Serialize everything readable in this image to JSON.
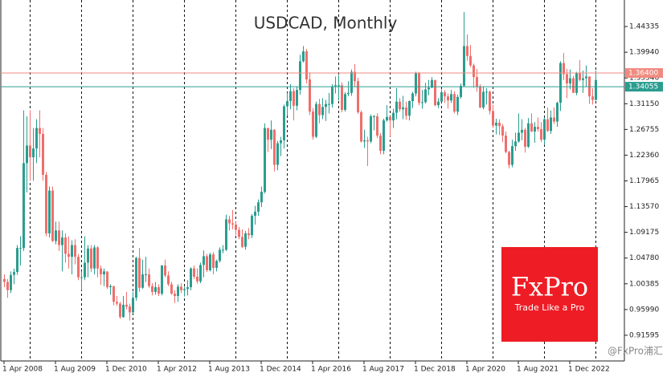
{
  "chart_data": {
    "type": "candlestick",
    "title": "USDCAD, Monthly",
    "up_color": "#2a9d8f",
    "down_color": "#ef6f6c",
    "ylim": [
      0.872,
      1.48868
    ],
    "yticks": [
      1.44335,
      {
        "value": 1.3994,
        "label": "1.39940"
      },
      1.35546,
      {
        "value": 1.3115,
        "label": "1.31150"
      },
      1.26755,
      {
        "value": 1.2236,
        "label": "1.22360"
      },
      1.17965,
      {
        "value": 1.1357,
        "label": "1.13570"
      },
      1.09175,
      {
        "value": 1.0478,
        "label": "1.04780"
      },
      1.00385,
      {
        "value": 0.9599,
        "label": "0.95990"
      },
      0.91595
    ],
    "hlines": [
      {
        "value": 1.364,
        "label": "1.36400",
        "color": "#f08a80"
      },
      {
        "value": 1.34055,
        "label": "1.34055",
        "color": "#2a9d8f"
      }
    ],
    "logo": {
      "name": "FxPro",
      "slogan": "Trade Like a Pro",
      "color": "#ee1c25"
    },
    "watermark": "@FxPro浦汇",
    "categories": [
      "1 Apr 2008",
      null,
      null,
      null,
      null,
      null,
      null,
      null,
      null,
      null,
      null,
      null,
      null,
      null,
      null,
      null,
      "1 Aug 2009",
      null,
      null,
      null,
      null,
      null,
      null,
      null,
      null,
      null,
      null,
      null,
      null,
      null,
      null,
      null,
      "1 Dec 2010",
      null,
      null,
      null,
      null,
      null,
      null,
      null,
      null,
      null,
      null,
      null,
      null,
      null,
      null,
      null,
      "1 Apr 2012",
      null,
      null,
      null,
      null,
      null,
      null,
      null,
      null,
      null,
      null,
      null,
      null,
      null,
      null,
      null,
      "1 Aug 2013",
      null,
      null,
      null,
      null,
      null,
      null,
      null,
      null,
      null,
      null,
      null,
      null,
      null,
      null,
      null,
      "1 Dec 2014",
      null,
      null,
      null,
      null,
      null,
      null,
      null,
      null,
      null,
      null,
      null,
      null,
      null,
      null,
      null,
      "1 Apr 2016",
      null,
      null,
      null,
      null,
      null,
      null,
      null,
      null,
      null,
      null,
      null,
      null,
      null,
      null,
      null,
      "1 Aug 2017",
      null,
      null,
      null,
      null,
      null,
      null,
      null,
      null,
      null,
      null,
      null,
      null,
      null,
      null,
      null,
      "1 Dec 2018",
      null,
      null,
      null,
      null,
      null,
      null,
      null,
      null,
      null,
      null,
      null,
      null,
      null,
      null,
      null,
      "1 Apr 2020",
      null,
      null,
      null,
      null,
      null,
      null,
      null,
      null,
      null,
      null,
      null,
      null,
      null,
      null,
      null,
      "1 Aug 2021",
      null,
      null,
      null,
      null,
      null,
      null,
      null,
      null,
      null,
      null,
      null,
      null,
      null,
      null,
      null,
      "1 Dec 2022",
      null,
      null,
      null,
      null,
      null,
      null,
      null,
      null
    ],
    "ohlc": [
      [
        1.012,
        1.02,
        0.998,
        1.007
      ],
      [
        1.007,
        1.012,
        0.98,
        0.993
      ],
      [
        0.993,
        1.025,
        0.988,
        1.019
      ],
      [
        1.019,
        1.03,
        1.003,
        1.024
      ],
      [
        1.024,
        1.07,
        1.019,
        1.065
      ],
      [
        1.065,
        1.085,
        1.035,
        1.065
      ],
      [
        1.065,
        1.3,
        1.06,
        1.21
      ],
      [
        1.21,
        1.29,
        1.16,
        1.24
      ],
      [
        1.24,
        1.3,
        1.18,
        1.22
      ],
      [
        1.22,
        1.27,
        1.18,
        1.235
      ],
      [
        1.235,
        1.285,
        1.21,
        1.27
      ],
      [
        1.27,
        1.3,
        1.22,
        1.26
      ],
      [
        1.26,
        1.27,
        1.18,
        1.19
      ],
      [
        1.19,
        1.195,
        1.085,
        1.09
      ],
      [
        1.09,
        1.17,
        1.083,
        1.163
      ],
      [
        1.163,
        1.17,
        1.075,
        1.077
      ],
      [
        1.077,
        1.11,
        1.071,
        1.095
      ],
      [
        1.095,
        1.11,
        1.06,
        1.07
      ],
      [
        1.07,
        1.095,
        1.025,
        1.083
      ],
      [
        1.083,
        1.09,
        1.04,
        1.055
      ],
      [
        1.055,
        1.085,
        1.03,
        1.05
      ],
      [
        1.05,
        1.078,
        1.02,
        1.07
      ],
      [
        1.07,
        1.08,
        1.037,
        1.05
      ],
      [
        1.05,
        1.055,
        1.01,
        1.015
      ],
      [
        1.015,
        1.025,
        0.993,
        1.015
      ],
      [
        1.015,
        1.085,
        1.01,
        1.04
      ],
      [
        1.04,
        1.07,
        1.015,
        1.064
      ],
      [
        1.064,
        1.07,
        1.024,
        1.03
      ],
      [
        1.03,
        1.07,
        1.02,
        1.066
      ],
      [
        1.066,
        1.068,
        1.015,
        1.03
      ],
      [
        1.03,
        1.035,
        1.002,
        1.02
      ],
      [
        1.02,
        1.03,
        1.0,
        1.025
      ],
      [
        1.025,
        1.025,
        0.995,
        0.998
      ],
      [
        0.998,
        1.003,
        0.985,
        1.0
      ],
      [
        1.0,
        1.0,
        0.967,
        0.973
      ],
      [
        0.973,
        0.983,
        0.966,
        0.97
      ],
      [
        0.97,
        0.973,
        0.944,
        0.947
      ],
      [
        0.947,
        0.983,
        0.946,
        0.968
      ],
      [
        0.968,
        0.99,
        0.96,
        0.965
      ],
      [
        0.965,
        0.97,
        0.941,
        0.955
      ],
      [
        0.955,
        0.99,
        0.953,
        0.98
      ],
      [
        0.98,
        1.05,
        0.975,
        1.048
      ],
      [
        1.048,
        1.065,
        0.99,
        0.997
      ],
      [
        0.997,
        1.045,
        0.995,
        1.02
      ],
      [
        1.02,
        1.05,
        1.007,
        1.02
      ],
      [
        1.02,
        1.03,
        0.997,
        1.0
      ],
      [
        1.0,
        1.005,
        0.984,
        0.99
      ],
      [
        0.99,
        1.007,
        0.985,
        0.998
      ],
      [
        0.998,
        1.003,
        0.983,
        0.987
      ],
      [
        0.987,
        1.036,
        0.984,
        1.035
      ],
      [
        1.035,
        1.045,
        1.015,
        1.018
      ],
      [
        1.018,
        1.025,
        1.0,
        1.003
      ],
      [
        1.003,
        1.007,
        0.985,
        0.987
      ],
      [
        0.987,
        0.993,
        0.971,
        0.983
      ],
      [
        0.983,
        1.003,
        0.973,
        0.999
      ],
      [
        0.999,
        1.005,
        0.988,
        0.993
      ],
      [
        0.993,
        0.999,
        0.982,
        0.995
      ],
      [
        0.995,
        1.01,
        0.984,
        0.998
      ],
      [
        0.998,
        1.032,
        0.993,
        1.03
      ],
      [
        1.03,
        1.035,
        1.012,
        1.016
      ],
      [
        1.016,
        1.03,
        1.004,
        1.008
      ],
      [
        1.008,
        1.04,
        1.005,
        1.036
      ],
      [
        1.036,
        1.061,
        1.015,
        1.051
      ],
      [
        1.051,
        1.055,
        1.024,
        1.027
      ],
      [
        1.027,
        1.057,
        1.025,
        1.054
      ],
      [
        1.054,
        1.058,
        1.02,
        1.031
      ],
      [
        1.031,
        1.045,
        1.025,
        1.043
      ],
      [
        1.043,
        1.066,
        1.04,
        1.062
      ],
      [
        1.062,
        1.07,
        1.056,
        1.062
      ],
      [
        1.062,
        1.122,
        1.06,
        1.114
      ],
      [
        1.114,
        1.12,
        1.095,
        1.107
      ],
      [
        1.107,
        1.13,
        1.097,
        1.105
      ],
      [
        1.105,
        1.11,
        1.087,
        1.096
      ],
      [
        1.096,
        1.101,
        1.08,
        1.084
      ],
      [
        1.084,
        1.097,
        1.065,
        1.067
      ],
      [
        1.067,
        1.094,
        1.062,
        1.09
      ],
      [
        1.09,
        1.099,
        1.08,
        1.087
      ],
      [
        1.087,
        1.123,
        1.082,
        1.12
      ],
      [
        1.12,
        1.137,
        1.105,
        1.127
      ],
      [
        1.127,
        1.148,
        1.12,
        1.143
      ],
      [
        1.143,
        1.17,
        1.135,
        1.161
      ],
      [
        1.161,
        1.278,
        1.158,
        1.27
      ],
      [
        1.27,
        1.27,
        1.229,
        1.25
      ],
      [
        1.25,
        1.283,
        1.234,
        1.267
      ],
      [
        1.267,
        1.268,
        1.196,
        1.207
      ],
      [
        1.207,
        1.248,
        1.198,
        1.244
      ],
      [
        1.244,
        1.255,
        1.222,
        1.249
      ],
      [
        1.249,
        1.31,
        1.235,
        1.307
      ],
      [
        1.307,
        1.33,
        1.291,
        1.316
      ],
      [
        1.316,
        1.345,
        1.302,
        1.333
      ],
      [
        1.333,
        1.338,
        1.283,
        1.308
      ],
      [
        1.308,
        1.34,
        1.3,
        1.335
      ],
      [
        1.335,
        1.395,
        1.327,
        1.384
      ],
      [
        1.384,
        1.41,
        1.382,
        1.401
      ],
      [
        1.401,
        1.405,
        1.346,
        1.353
      ],
      [
        1.353,
        1.365,
        1.292,
        1.298
      ],
      [
        1.298,
        1.304,
        1.25,
        1.255
      ],
      [
        1.255,
        1.315,
        1.253,
        1.311
      ],
      [
        1.311,
        1.32,
        1.278,
        1.292
      ],
      [
        1.292,
        1.321,
        1.285,
        1.306
      ],
      [
        1.306,
        1.318,
        1.282,
        1.311
      ],
      [
        1.311,
        1.33,
        1.295,
        1.311
      ],
      [
        1.311,
        1.345,
        1.305,
        1.341
      ],
      [
        1.341,
        1.358,
        1.329,
        1.343
      ],
      [
        1.343,
        1.36,
        1.317,
        1.343
      ],
      [
        1.343,
        1.348,
        1.297,
        1.301
      ],
      [
        1.301,
        1.331,
        1.298,
        1.328
      ],
      [
        1.328,
        1.35,
        1.324,
        1.33
      ],
      [
        1.33,
        1.37,
        1.325,
        1.366
      ],
      [
        1.366,
        1.379,
        1.34,
        1.35
      ],
      [
        1.35,
        1.356,
        1.294,
        1.297
      ],
      [
        1.297,
        1.3,
        1.245,
        1.247
      ],
      [
        1.247,
        1.267,
        1.236,
        1.249
      ],
      [
        1.249,
        1.255,
        1.205,
        1.247
      ],
      [
        1.247,
        1.293,
        1.244,
        1.29
      ],
      [
        1.29,
        1.292,
        1.266,
        1.29
      ],
      [
        1.29,
        1.295,
        1.253,
        1.257
      ],
      [
        1.257,
        1.261,
        1.225,
        1.231
      ],
      [
        1.231,
        1.286,
        1.225,
        1.283
      ],
      [
        1.283,
        1.309,
        1.281,
        1.289
      ],
      [
        1.289,
        1.29,
        1.255,
        1.283
      ],
      [
        1.283,
        1.303,
        1.27,
        1.296
      ],
      [
        1.296,
        1.338,
        1.285,
        1.315
      ],
      [
        1.315,
        1.321,
        1.298,
        1.302
      ],
      [
        1.302,
        1.325,
        1.285,
        1.305
      ],
      [
        1.305,
        1.315,
        1.284,
        1.291
      ],
      [
        1.291,
        1.317,
        1.283,
        1.316
      ],
      [
        1.316,
        1.332,
        1.304,
        1.329
      ],
      [
        1.329,
        1.366,
        1.324,
        1.364
      ],
      [
        1.364,
        1.366,
        1.309,
        1.313
      ],
      [
        1.313,
        1.335,
        1.303,
        1.314
      ],
      [
        1.314,
        1.347,
        1.312,
        1.336
      ],
      [
        1.336,
        1.352,
        1.326,
        1.339
      ],
      [
        1.339,
        1.357,
        1.338,
        1.352
      ],
      [
        1.352,
        1.352,
        1.307,
        1.309
      ],
      [
        1.309,
        1.321,
        1.304,
        1.315
      ],
      [
        1.315,
        1.336,
        1.314,
        1.331
      ],
      [
        1.331,
        1.335,
        1.313,
        1.324
      ],
      [
        1.324,
        1.329,
        1.303,
        1.317
      ],
      [
        1.317,
        1.335,
        1.313,
        1.328
      ],
      [
        1.328,
        1.333,
        1.295,
        1.298
      ],
      [
        1.298,
        1.327,
        1.292,
        1.323
      ],
      [
        1.323,
        1.346,
        1.32,
        1.342
      ],
      [
        1.342,
        1.468,
        1.34,
        1.41
      ],
      [
        1.41,
        1.43,
        1.385,
        1.393
      ],
      [
        1.393,
        1.412,
        1.374,
        1.377
      ],
      [
        1.377,
        1.38,
        1.339,
        1.357
      ],
      [
        1.357,
        1.371,
        1.332,
        1.34
      ],
      [
        1.34,
        1.345,
        1.304,
        1.305
      ],
      [
        1.305,
        1.341,
        1.302,
        1.332
      ],
      [
        1.332,
        1.338,
        1.31,
        1.332
      ],
      [
        1.332,
        1.334,
        1.293,
        1.299
      ],
      [
        1.299,
        1.31,
        1.27,
        1.274
      ],
      [
        1.274,
        1.286,
        1.259,
        1.279
      ],
      [
        1.279,
        1.285,
        1.258,
        1.273
      ],
      [
        1.273,
        1.277,
        1.246,
        1.257
      ],
      [
        1.257,
        1.264,
        1.227,
        1.229
      ],
      [
        1.229,
        1.231,
        1.201,
        1.207
      ],
      [
        1.207,
        1.25,
        1.203,
        1.239
      ],
      [
        1.239,
        1.262,
        1.231,
        1.247
      ],
      [
        1.247,
        1.295,
        1.245,
        1.262
      ],
      [
        1.262,
        1.285,
        1.249,
        1.267
      ],
      [
        1.267,
        1.27,
        1.228,
        1.238
      ],
      [
        1.238,
        1.287,
        1.236,
        1.278
      ],
      [
        1.278,
        1.295,
        1.263,
        1.264
      ],
      [
        1.264,
        1.28,
        1.245,
        1.272
      ],
      [
        1.272,
        1.288,
        1.264,
        1.268
      ],
      [
        1.268,
        1.28,
        1.246,
        1.25
      ],
      [
        1.25,
        1.288,
        1.241,
        1.285
      ],
      [
        1.285,
        1.305,
        1.263,
        1.265
      ],
      [
        1.265,
        1.3,
        1.26,
        1.288
      ],
      [
        1.288,
        1.305,
        1.277,
        1.281
      ],
      [
        1.281,
        1.315,
        1.272,
        1.313
      ],
      [
        1.313,
        1.384,
        1.299,
        1.381
      ],
      [
        1.381,
        1.398,
        1.352,
        1.362
      ],
      [
        1.362,
        1.371,
        1.321,
        1.346
      ],
      [
        1.346,
        1.37,
        1.336,
        1.355
      ],
      [
        1.355,
        1.359,
        1.33,
        1.33
      ],
      [
        1.33,
        1.366,
        1.326,
        1.364
      ],
      [
        1.364,
        1.386,
        1.35,
        1.352
      ],
      [
        1.352,
        1.368,
        1.33,
        1.355
      ],
      [
        1.355,
        1.377,
        1.34,
        1.358
      ],
      [
        1.358,
        1.358,
        1.311,
        1.324
      ],
      [
        1.324,
        1.338,
        1.31,
        1.318
      ],
      [
        1.318,
        1.368,
        1.317,
        1.352
      ]
    ]
  }
}
